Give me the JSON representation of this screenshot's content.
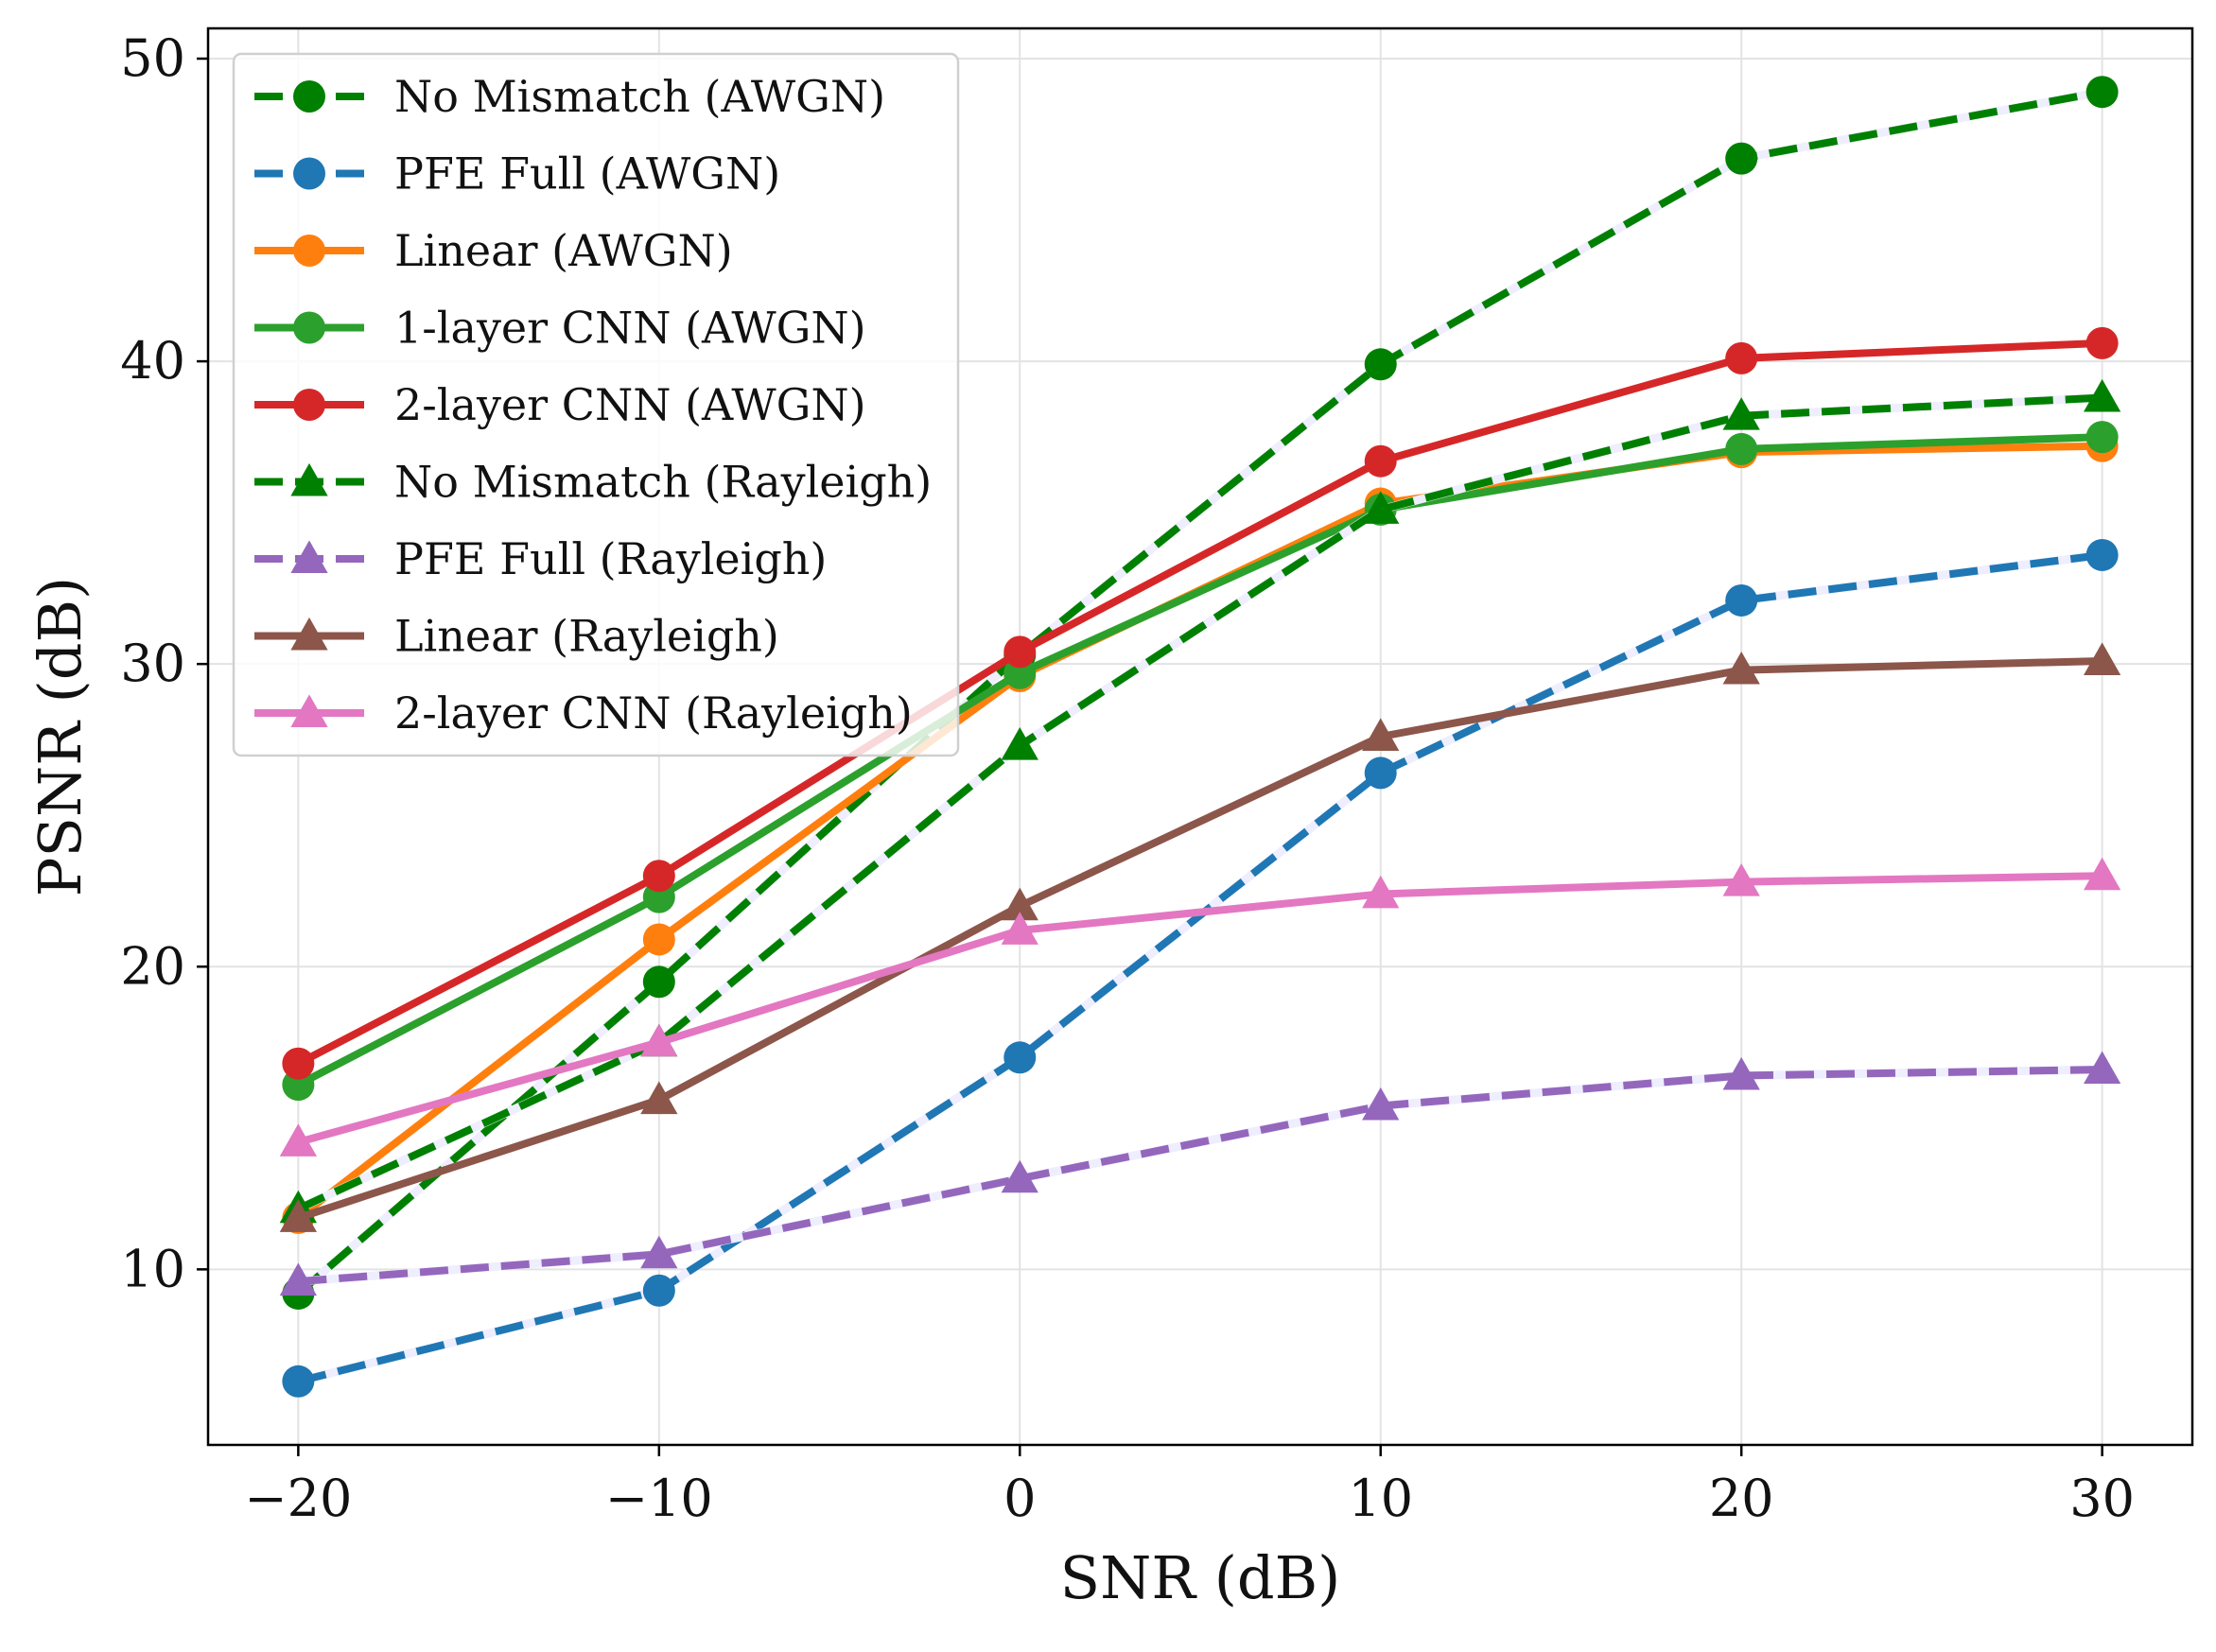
{
  "chart_data": {
    "type": "line",
    "title": "",
    "xlabel": "SNR (dB)",
    "ylabel": "PSNR (dB)",
    "xlim": [
      -22.5,
      32.5
    ],
    "ylim": [
      4.2,
      51.0
    ],
    "x_ticks": [
      -20,
      -10,
      0,
      10,
      20,
      30
    ],
    "x_tick_labels": [
      "−20",
      "−10",
      "0",
      "10",
      "20",
      "30"
    ],
    "y_ticks": [
      10,
      20,
      30,
      40,
      50
    ],
    "y_tick_labels": [
      "10",
      "20",
      "30",
      "40",
      "50"
    ],
    "grid": true,
    "legend_position": "upper-left",
    "x": [
      -20,
      -10,
      0,
      10,
      20,
      30
    ],
    "series": [
      {
        "name": "No Mismatch (AWGN)",
        "values": [
          9.2,
          19.5,
          30.3,
          39.9,
          46.7,
          48.9
        ],
        "color": "#008000",
        "dash": true,
        "marker": "circle"
      },
      {
        "name": "PFE Full (AWGN)",
        "values": [
          6.3,
          9.3,
          17.0,
          26.4,
          32.1,
          33.6
        ],
        "color": "#1f77b4",
        "dash": true,
        "marker": "circle"
      },
      {
        "name": "Linear (AWGN)",
        "values": [
          11.7,
          20.9,
          29.6,
          35.3,
          37.0,
          37.2
        ],
        "color": "#ff7f0e",
        "dash": false,
        "marker": "circle"
      },
      {
        "name": "1-layer CNN (AWGN)",
        "values": [
          16.1,
          22.3,
          29.7,
          35.1,
          37.1,
          37.5
        ],
        "color": "#2ca02c",
        "dash": false,
        "marker": "circle"
      },
      {
        "name": "2-layer CNN (AWGN)",
        "values": [
          16.8,
          23.0,
          30.4,
          36.7,
          40.1,
          40.6
        ],
        "color": "#d62728",
        "dash": false,
        "marker": "circle"
      },
      {
        "name": "No Mismatch (Rayleigh)",
        "values": [
          12.0,
          17.5,
          27.3,
          35.1,
          38.2,
          38.8
        ],
        "color": "#008000",
        "dash": true,
        "marker": "triangle"
      },
      {
        "name": "PFE Full (Rayleigh)",
        "values": [
          9.6,
          10.5,
          13.0,
          15.4,
          16.4,
          16.6
        ],
        "color": "#9467bd",
        "dash": true,
        "marker": "triangle"
      },
      {
        "name": "Linear (Rayleigh)",
        "values": [
          11.7,
          15.6,
          22.0,
          27.6,
          29.8,
          30.1
        ],
        "color": "#8c564b",
        "dash": false,
        "marker": "triangle"
      },
      {
        "name": "2-layer CNN (Rayleigh)",
        "values": [
          14.2,
          17.5,
          21.2,
          22.4,
          22.8,
          23.0
        ],
        "color": "#e377c2",
        "dash": false,
        "marker": "triangle"
      }
    ]
  }
}
